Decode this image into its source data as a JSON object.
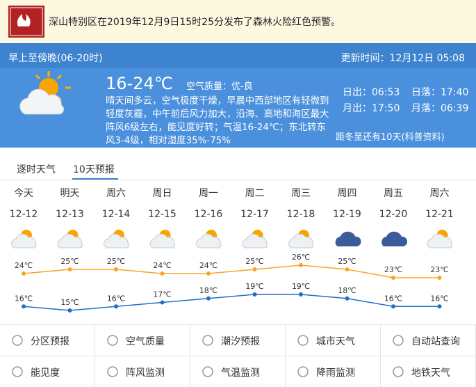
{
  "alert": {
    "text": "深山特别区在2019年12月9日15时25分发布了森林火险红色预警。"
  },
  "today": {
    "period": "早上至傍晚(06-20时)",
    "updated": "更新时间：12月12日 05:08",
    "temp": "16-24℃",
    "air": "空气质量：优-良",
    "desc": "晴天间多云，空气极度干燥，早晨中西部地区有轻微到轻度灰霾，中午前后风力加大，沿海、高地和海区最大阵风6级左右，能见度好转；气温16-24℃；东北转东风3-4级，相对湿度35%-75%",
    "sunrise": "日出：06:53",
    "sunset": "日落：17:40",
    "moonrise": "月出：17:50",
    "moonset": "月落：06:39",
    "solstice": "距冬至还有10天(科普资料)"
  },
  "tabs": [
    "逐时天气",
    "10天预报"
  ],
  "weekdays": [
    "今天",
    "明天",
    "周六",
    "周日",
    "周一",
    "周二",
    "周三",
    "周四",
    "周五",
    "周六"
  ],
  "chart_data": {
    "type": "line",
    "categories": [
      "12-12",
      "12-13",
      "12-14",
      "12-15",
      "12-16",
      "12-17",
      "12-18",
      "12-19",
      "12-20",
      "12-21"
    ],
    "weather": [
      "partly-cloudy",
      "partly-cloudy",
      "partly-cloudy",
      "partly-cloudy",
      "partly-cloudy",
      "partly-cloudy",
      "partly-cloudy",
      "cloudy",
      "cloudy",
      "partly-cloudy"
    ],
    "series": [
      {
        "color": "#f5a623",
        "values": [
          24,
          25,
          25,
          24,
          24,
          25,
          26,
          25,
          23,
          23
        ],
        "value_labels": [
          "24℃",
          "25℃",
          "25℃",
          "24℃",
          "24℃",
          "25℃",
          "26℃",
          "25℃",
          "23℃",
          "23℃"
        ]
      },
      {
        "color": "#1f6fc4",
        "values": [
          16,
          15,
          16,
          17,
          18,
          19,
          19,
          18,
          16,
          16
        ],
        "value_labels": [
          "16℃",
          "15℃",
          "16℃",
          "17℃",
          "18℃",
          "19℃",
          "19℃",
          "18℃",
          "16℃",
          "16℃"
        ]
      }
    ]
  },
  "menu": [
    [
      "分区预报",
      "空气质量",
      "潮汐预报",
      "城市天气",
      "自动站查询"
    ],
    [
      "能见度",
      "阵风监测",
      "气温监测",
      "降雨监测",
      "地铁天气"
    ]
  ]
}
